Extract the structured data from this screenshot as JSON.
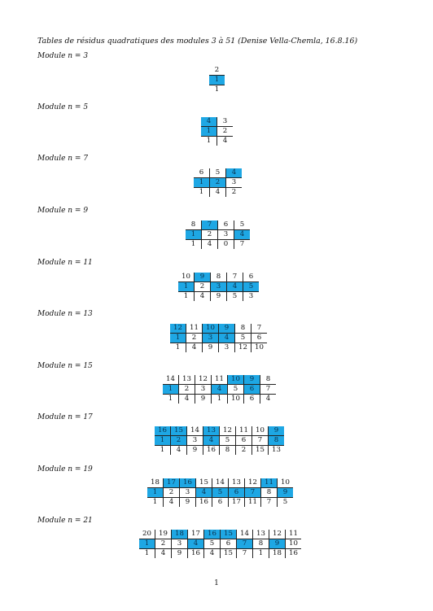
{
  "title": "Tables de résidus quadratiques des modules 3 à 51 (Denise Vella-Chemla, 16.8.16)",
  "label_prefix": "Module n = ",
  "page_number": "1",
  "modules": [
    {
      "n": "3",
      "top": [
        "2"
      ],
      "mid": [
        "1"
      ],
      "bot": [
        "1"
      ],
      "hl_top": [],
      "hl_mid": [
        0
      ]
    },
    {
      "n": "5",
      "top": [
        "4",
        "3"
      ],
      "mid": [
        "1",
        "2"
      ],
      "bot": [
        "1",
        "4"
      ],
      "hl_top": [
        0
      ],
      "hl_mid": [
        0
      ]
    },
    {
      "n": "7",
      "top": [
        "6",
        "5",
        "4"
      ],
      "mid": [
        "1",
        "2",
        "3"
      ],
      "bot": [
        "1",
        "4",
        "2"
      ],
      "hl_top": [
        2
      ],
      "hl_mid": [
        0,
        1
      ]
    },
    {
      "n": "9",
      "top": [
        "8",
        "7",
        "6",
        "5"
      ],
      "mid": [
        "1",
        "2",
        "3",
        "4"
      ],
      "bot": [
        "1",
        "4",
        "0",
        "7"
      ],
      "hl_top": [
        1
      ],
      "hl_mid": [
        0,
        3
      ]
    },
    {
      "n": "11",
      "top": [
        "10",
        "9",
        "8",
        "7",
        "6"
      ],
      "mid": [
        "1",
        "2",
        "3",
        "4",
        "5"
      ],
      "bot": [
        "1",
        "4",
        "9",
        "5",
        "3"
      ],
      "hl_top": [
        1
      ],
      "hl_mid": [
        0,
        2,
        3,
        4
      ]
    },
    {
      "n": "13",
      "top": [
        "12",
        "11",
        "10",
        "9",
        "8",
        "7"
      ],
      "mid": [
        "1",
        "2",
        "3",
        "4",
        "5",
        "6"
      ],
      "bot": [
        "1",
        "4",
        "9",
        "3",
        "12",
        "10"
      ],
      "hl_top": [
        0,
        2,
        3
      ],
      "hl_mid": [
        0,
        2,
        3
      ]
    },
    {
      "n": "15",
      "top": [
        "14",
        "13",
        "12",
        "11",
        "10",
        "9",
        "8"
      ],
      "mid": [
        "1",
        "2",
        "3",
        "4",
        "5",
        "6",
        "7"
      ],
      "bot": [
        "1",
        "4",
        "9",
        "1",
        "10",
        "6",
        "4"
      ],
      "hl_top": [
        4,
        5
      ],
      "hl_mid": [
        0,
        3,
        5
      ]
    },
    {
      "n": "17",
      "top": [
        "16",
        "15",
        "14",
        "13",
        "12",
        "11",
        "10",
        "9"
      ],
      "mid": [
        "1",
        "2",
        "3",
        "4",
        "5",
        "6",
        "7",
        "8"
      ],
      "bot": [
        "1",
        "4",
        "9",
        "16",
        "8",
        "2",
        "15",
        "13"
      ],
      "hl_top": [
        0,
        1,
        3,
        7
      ],
      "hl_mid": [
        0,
        1,
        3,
        7
      ]
    },
    {
      "n": "19",
      "top": [
        "18",
        "17",
        "16",
        "15",
        "14",
        "13",
        "12",
        "11",
        "10"
      ],
      "mid": [
        "1",
        "2",
        "3",
        "4",
        "5",
        "6",
        "7",
        "8",
        "9"
      ],
      "bot": [
        "1",
        "4",
        "9",
        "16",
        "6",
        "17",
        "11",
        "7",
        "5"
      ],
      "hl_top": [
        1,
        2,
        7
      ],
      "hl_mid": [
        0,
        3,
        4,
        5,
        6,
        8
      ]
    },
    {
      "n": "21",
      "top": [
        "20",
        "19",
        "18",
        "17",
        "16",
        "15",
        "14",
        "13",
        "12",
        "11"
      ],
      "mid": [
        "1",
        "2",
        "3",
        "4",
        "5",
        "6",
        "7",
        "8",
        "9",
        "10"
      ],
      "bot": [
        "1",
        "4",
        "9",
        "16",
        "4",
        "15",
        "7",
        "1",
        "18",
        "16"
      ],
      "hl_top": [
        2,
        4,
        5
      ],
      "hl_mid": [
        0,
        3,
        6,
        8
      ]
    }
  ]
}
